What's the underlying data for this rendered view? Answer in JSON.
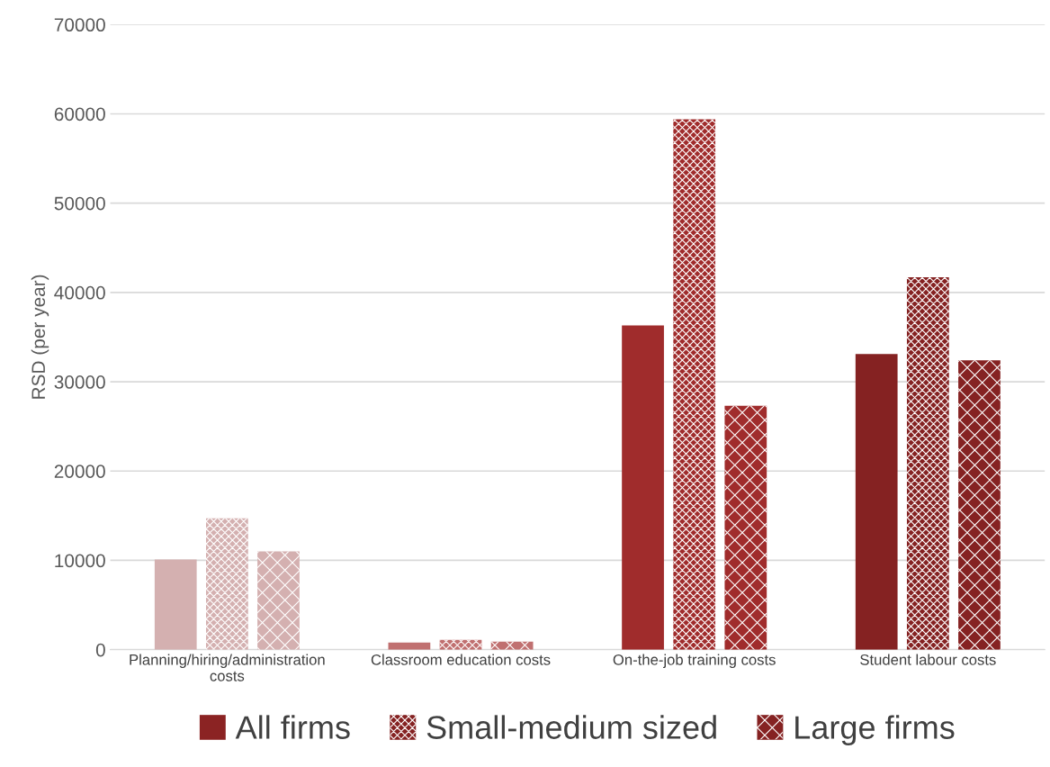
{
  "chart_data": {
    "type": "bar",
    "ylabel": "RSD (per year)",
    "categories": [
      "Planning/hiring/administration\ncosts",
      "Classroom education costs",
      "On-the-job training costs",
      "Student labour costs"
    ],
    "series": [
      {
        "name": "All firms",
        "color": "#8b2323",
        "colors": [
          "#d4b0b0",
          "#c07070",
          "#a02c2c",
          "#852222"
        ],
        "values": [
          10100,
          800,
          36300,
          33100
        ]
      },
      {
        "name": "Small-medium sized",
        "color": "#852222",
        "colors": [
          "#d4b0b0",
          "#c07070",
          "#a02c2c",
          "#852222"
        ],
        "values": [
          14700,
          1100,
          59400,
          41700
        ]
      },
      {
        "name": "Large firms",
        "color": "#852222",
        "colors": [
          "#d4b0b0",
          "#c07070",
          "#a02c2c",
          "#852222"
        ],
        "values": [
          11000,
          900,
          27300,
          32400
        ]
      }
    ],
    "ylim": [
      0,
      70000
    ],
    "yticks": [
      0,
      10000,
      20000,
      30000,
      40000,
      50000,
      60000,
      70000
    ],
    "grid": "y",
    "legend": "bottom"
  }
}
